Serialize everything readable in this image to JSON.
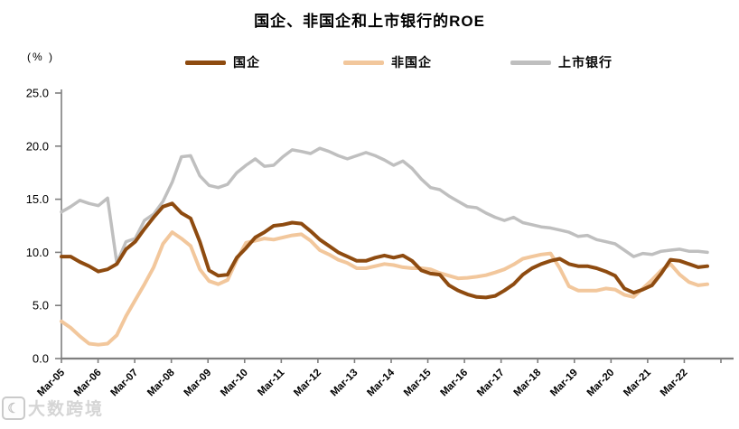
{
  "title": "国企、非国企和上市银行的ROE",
  "y_axis_unit": "(% )",
  "legend": [
    {
      "label": "国企",
      "color": "#8E4B10"
    },
    {
      "label": "非国企",
      "color": "#F2C79C"
    },
    {
      "label": "上市银行",
      "color": "#BFBFBF"
    }
  ],
  "watermark": {
    "logo_glyph": "☾",
    "text": "大数跨境"
  },
  "colors": {
    "axis": "#7F7F7F",
    "tick_label": "#000000"
  },
  "chart_data": {
    "type": "line",
    "title": "国企、非国企和上市银行的ROE",
    "ylabel": "(%)",
    "ylim": [
      0,
      25
    ],
    "ytick_labels": [
      "0.0",
      "5.0",
      "10.0",
      "15.0",
      "20.0",
      "25.0"
    ],
    "ytick_values": [
      0,
      5,
      10,
      15,
      20,
      25
    ],
    "grid": false,
    "legend_position": "top",
    "x_axis_year_ticks": [
      "Mar-05",
      "Mar-06",
      "Mar-07",
      "Mar-08",
      "Mar-09",
      "Mar-10",
      "Mar-11",
      "Mar-12",
      "Mar-13",
      "Mar-14",
      "Mar-15",
      "Mar-16",
      "Mar-17",
      "Mar-18",
      "Mar-19",
      "Mar-20",
      "Mar-21",
      "Mar-22"
    ],
    "x": [
      "Mar-05",
      "Jun-05",
      "Sep-05",
      "Dec-05",
      "Mar-06",
      "Jun-06",
      "Sep-06",
      "Dec-06",
      "Mar-07",
      "Jun-07",
      "Sep-07",
      "Dec-07",
      "Mar-08",
      "Jun-08",
      "Sep-08",
      "Dec-08",
      "Mar-09",
      "Jun-09",
      "Sep-09",
      "Dec-09",
      "Mar-10",
      "Jun-10",
      "Sep-10",
      "Dec-10",
      "Mar-11",
      "Jun-11",
      "Sep-11",
      "Dec-11",
      "Mar-12",
      "Jun-12",
      "Sep-12",
      "Dec-12",
      "Mar-13",
      "Jun-13",
      "Sep-13",
      "Dec-13",
      "Mar-14",
      "Jun-14",
      "Sep-14",
      "Dec-14",
      "Mar-15",
      "Jun-15",
      "Sep-15",
      "Dec-15",
      "Mar-16",
      "Jun-16",
      "Sep-16",
      "Dec-16",
      "Mar-17",
      "Jun-17",
      "Sep-17",
      "Dec-17",
      "Mar-18",
      "Jun-18",
      "Sep-18",
      "Dec-18",
      "Mar-19",
      "Jun-19",
      "Sep-19",
      "Dec-19",
      "Mar-20",
      "Jun-20",
      "Sep-20",
      "Dec-20",
      "Mar-21",
      "Jun-21",
      "Sep-21",
      "Dec-21",
      "Mar-22",
      "Jun-22",
      "Sep-22"
    ],
    "series": [
      {
        "name": "国企",
        "color": "#8E4B10",
        "stroke_width": 4,
        "values": [
          9.6,
          9.6,
          9.1,
          8.7,
          8.2,
          8.4,
          8.9,
          10.3,
          11.0,
          12.2,
          13.3,
          14.3,
          14.6,
          13.7,
          13.2,
          11.0,
          8.3,
          7.8,
          7.9,
          9.5,
          10.4,
          11.4,
          11.9,
          12.5,
          12.6,
          12.8,
          12.7,
          12.0,
          11.2,
          10.6,
          10.0,
          9.6,
          9.2,
          9.2,
          9.5,
          9.7,
          9.5,
          9.7,
          9.2,
          8.3,
          8.0,
          7.9,
          6.9,
          6.4,
          6.05,
          5.8,
          5.75,
          5.9,
          6.4,
          7.0,
          7.9,
          8.5,
          8.9,
          9.2,
          9.4,
          8.9,
          8.7,
          8.7,
          8.5,
          8.2,
          7.8,
          6.6,
          6.2,
          6.5,
          6.9,
          8.0,
          9.3,
          9.2,
          8.9,
          8.6,
          8.7
        ]
      },
      {
        "name": "非国企",
        "color": "#F2C79C",
        "stroke_width": 4,
        "values": [
          3.5,
          2.9,
          2.1,
          1.4,
          1.3,
          1.4,
          2.2,
          4.0,
          5.5,
          7.0,
          8.6,
          10.8,
          11.9,
          11.3,
          10.6,
          8.4,
          7.3,
          7.0,
          7.4,
          9.3,
          10.9,
          11.1,
          11.3,
          11.2,
          11.4,
          11.6,
          11.7,
          11.1,
          10.2,
          9.8,
          9.3,
          9.0,
          8.5,
          8.5,
          8.7,
          8.9,
          8.8,
          8.6,
          8.5,
          8.5,
          8.4,
          8.05,
          7.8,
          7.55,
          7.6,
          7.7,
          7.85,
          8.1,
          8.4,
          8.85,
          9.4,
          9.6,
          9.8,
          9.9,
          8.5,
          6.8,
          6.4,
          6.4,
          6.4,
          6.6,
          6.5,
          6.0,
          5.8,
          6.6,
          7.4,
          8.3,
          8.9,
          7.9,
          7.2,
          6.9,
          7.0
        ]
      },
      {
        "name": "上市银行",
        "color": "#BFBFBF",
        "stroke_width": 3.5,
        "values": [
          13.8,
          14.3,
          14.9,
          14.6,
          14.4,
          15.1,
          9.0,
          11.0,
          11.3,
          13.0,
          13.6,
          14.8,
          16.6,
          19.0,
          19.1,
          17.2,
          16.3,
          16.1,
          16.4,
          17.5,
          18.2,
          18.8,
          18.1,
          18.2,
          19.0,
          19.65,
          19.5,
          19.3,
          19.8,
          19.5,
          19.1,
          18.8,
          19.1,
          19.4,
          19.1,
          18.7,
          18.2,
          18.6,
          17.9,
          16.9,
          16.1,
          15.9,
          15.3,
          14.8,
          14.3,
          14.2,
          13.7,
          13.3,
          13.0,
          13.3,
          12.8,
          12.6,
          12.4,
          12.3,
          12.1,
          11.9,
          11.5,
          11.6,
          11.2,
          11.0,
          10.8,
          10.2,
          9.6,
          9.9,
          9.8,
          10.1,
          10.2,
          10.3,
          10.1,
          10.1,
          10.0
        ]
      }
    ]
  }
}
